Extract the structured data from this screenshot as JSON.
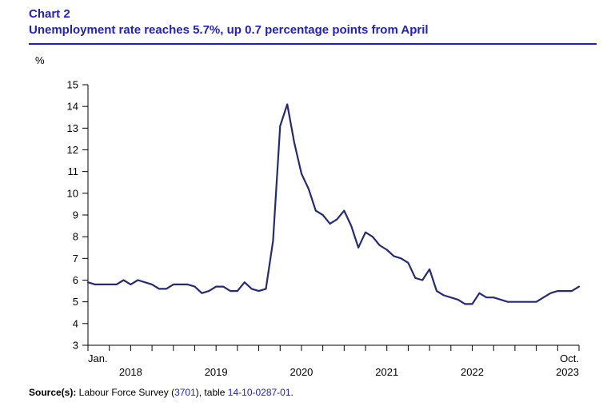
{
  "header": {
    "chart_label": "Chart 2",
    "title": "Unemployment rate reaches 5.7%, up 0.7 percentage points from April"
  },
  "colors": {
    "accent_blue": "#2222bb",
    "line": "#242a78",
    "axis": "#000000"
  },
  "chart_data": {
    "type": "line",
    "title": "Unemployment rate reaches 5.7%, up 0.7 percentage points from April",
    "unit_label": "%",
    "ylim": [
      3,
      15
    ],
    "ytick_step": 1,
    "grid": false,
    "legend": "none",
    "x_first_label": "Jan.",
    "x_last_label": "Oct.",
    "year_labels": [
      "2018",
      "2019",
      "2020",
      "2021",
      "2022",
      "2023"
    ],
    "x_tick_interval_months": 3,
    "series": [
      {
        "name": "Unemployment rate (%)",
        "values": [
          5.9,
          5.8,
          5.8,
          5.8,
          5.8,
          6.0,
          5.8,
          6.0,
          5.9,
          5.8,
          5.6,
          5.6,
          5.8,
          5.8,
          5.8,
          5.7,
          5.4,
          5.5,
          5.7,
          5.7,
          5.5,
          5.5,
          5.9,
          5.6,
          5.5,
          5.6,
          7.8,
          13.1,
          14.1,
          12.3,
          10.9,
          10.2,
          9.2,
          9.0,
          8.6,
          8.8,
          9.2,
          8.5,
          7.5,
          8.2,
          8.0,
          7.6,
          7.4,
          7.1,
          7.0,
          6.8,
          6.1,
          6.0,
          6.5,
          5.5,
          5.3,
          5.2,
          5.1,
          4.9,
          4.9,
          5.4,
          5.2,
          5.2,
          5.1,
          5.0,
          5.0,
          5.0,
          5.0,
          5.0,
          5.2,
          5.4,
          5.5,
          5.5,
          5.5,
          5.7
        ]
      }
    ]
  },
  "source": {
    "prefix": "Source(s):",
    "text1": " Labour Force Survey (",
    "link1": "3701",
    "text2": "), table ",
    "link2": "14-10-0287-01",
    "text3": "."
  }
}
